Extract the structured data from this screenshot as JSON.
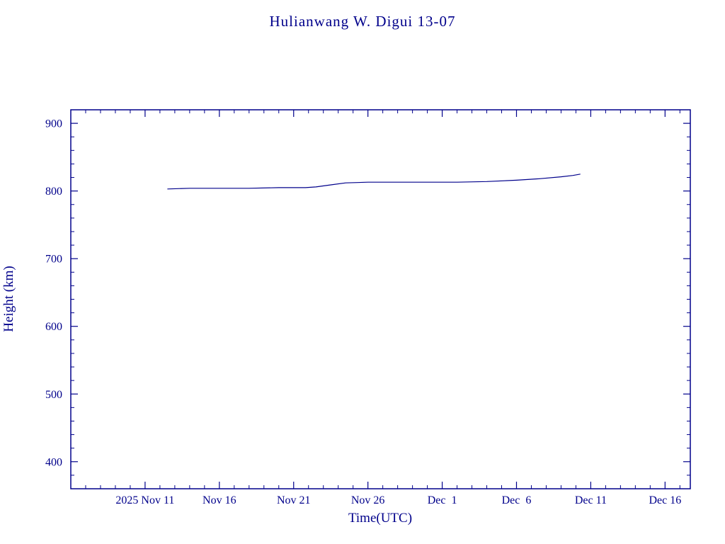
{
  "page": {
    "background_color": "#ffffff",
    "accent_color": "#00008B"
  },
  "chart_data": {
    "type": "line",
    "title": "Hulianwang W. Digui 13-07",
    "xlabel": "Time(UTC)",
    "ylabel": "Height (km)",
    "color": "#00008B",
    "grid": false,
    "legend": "none",
    "ylim": [
      360,
      920
    ],
    "y_major_ticks": [
      400,
      500,
      600,
      700,
      800,
      900
    ],
    "y_minor_step": 20,
    "x_axis_start_date": "2025 Nov 6",
    "xlim_days": [
      0,
      41.7
    ],
    "x_minor_step_days": 1,
    "x_major_ticks": [
      {
        "day": 5,
        "label": "2025 Nov 11"
      },
      {
        "day": 10,
        "label": "Nov 16"
      },
      {
        "day": 15,
        "label": "Nov 21"
      },
      {
        "day": 20,
        "label": "Nov 26"
      },
      {
        "day": 25,
        "label": "Dec  1"
      },
      {
        "day": 30,
        "label": "Dec  6"
      },
      {
        "day": 35,
        "label": "Dec 11"
      },
      {
        "day": 40,
        "label": "Dec 16"
      }
    ],
    "series": [
      {
        "name": "Height (km)",
        "points": [
          [
            6.5,
            803,
            "Nov 12"
          ],
          [
            8.0,
            804,
            "Nov 14"
          ],
          [
            10.0,
            804,
            "Nov 16"
          ],
          [
            12.0,
            804,
            "Nov 18"
          ],
          [
            14.0,
            805,
            "Nov 20"
          ],
          [
            15.8,
            805,
            "Nov 21"
          ],
          [
            16.5,
            806,
            "Nov 22"
          ],
          [
            17.5,
            809,
            "Nov 23"
          ],
          [
            18.5,
            812,
            "Nov 24"
          ],
          [
            20.0,
            813,
            "Nov 26"
          ],
          [
            23.0,
            813,
            "Nov 29"
          ],
          [
            26.0,
            813,
            "Dec 2"
          ],
          [
            28.0,
            814,
            "Dec 4"
          ],
          [
            30.0,
            816,
            "Dec 6"
          ],
          [
            31.5,
            818,
            "Dec 7"
          ],
          [
            33.0,
            821,
            "Dec 9"
          ],
          [
            33.8,
            823,
            "Dec 9"
          ],
          [
            34.3,
            825,
            "Dec 10"
          ]
        ]
      }
    ]
  }
}
